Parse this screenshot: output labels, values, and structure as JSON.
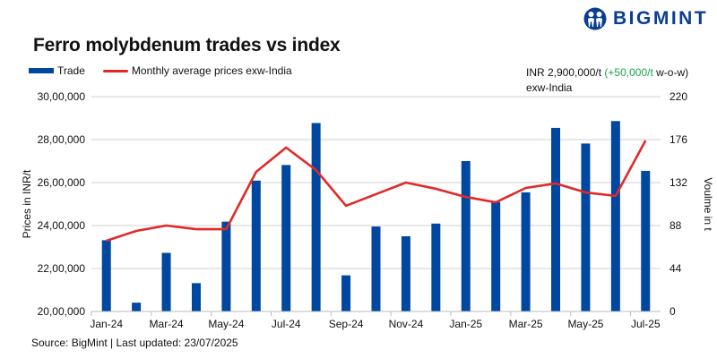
{
  "header": {
    "title": "Ferro molybdenum trades vs index",
    "logo_text": "BIGMINT"
  },
  "legend": {
    "bar_label": "Trade",
    "line_label": "Monthly average prices exw-India"
  },
  "note": {
    "price": "INR 2,900,000/t",
    "change": "(+50,000/t",
    "suffix": "w-o-w)",
    "line2": "exw-India"
  },
  "footer": {
    "source": "Source: BigMint | Last updated: 23/07/2025"
  },
  "colors": {
    "bar": "#0047a0",
    "line": "#e02a2a",
    "change_positive": "#1aa34a",
    "grid": "#d0d0d0",
    "logo": "#0b3e8f"
  },
  "chart_data": {
    "type": "bar",
    "title": "Ferro molybdenum trades vs index",
    "categories": [
      "Jan-24",
      "Feb-24",
      "Mar-24",
      "Apr-24",
      "May-24",
      "Jun-24",
      "Jul-24",
      "Aug-24",
      "Sep-24",
      "Oct-24",
      "Nov-24",
      "Dec-24",
      "Jan-25",
      "Feb-25",
      "Mar-25",
      "Apr-25",
      "May-25",
      "Jun-25",
      "Jul-25"
    ],
    "x_tick_labels": [
      "Jan-24",
      "Mar-24",
      "May-24",
      "Jul-24",
      "Sep-24",
      "Nov-24",
      "Jan-25",
      "Mar-25",
      "May-25",
      "Jul-25"
    ],
    "series": [
      {
        "name": "Trade",
        "type": "bar",
        "axis": "right",
        "values": [
          73,
          9,
          60,
          29,
          92,
          134,
          150,
          193,
          37,
          87,
          77,
          90,
          154,
          112,
          122,
          188,
          172,
          195,
          144
        ]
      },
      {
        "name": "Monthly average prices exw-India",
        "type": "line",
        "axis": "left",
        "values": [
          2329000,
          2375000,
          2400000,
          2383000,
          2383000,
          2650000,
          2763000,
          2658000,
          2492000,
          2546000,
          2600000,
          2571000,
          2533000,
          2508000,
          2575000,
          2596000,
          2554000,
          2538000,
          2796000
        ]
      }
    ],
    "ylabel": "Prices in INR/t",
    "ylabel_right": "Voulme in t",
    "ylim": [
      2000000,
      3000000
    ],
    "ylim_right": [
      0,
      220
    ],
    "y_ticks": [
      "20,00,000",
      "22,00,000",
      "24,00,000",
      "26,00,000",
      "28,00,000",
      "30,00,000"
    ],
    "y_tick_values": [
      2000000,
      2200000,
      2400000,
      2600000,
      2800000,
      3000000
    ],
    "y_ticks_right": [
      "0",
      "44",
      "88",
      "132",
      "176",
      "220"
    ],
    "y_tick_values_right": [
      0,
      44,
      88,
      132,
      176,
      220
    ],
    "grid": true,
    "legend_position": "top-left"
  }
}
